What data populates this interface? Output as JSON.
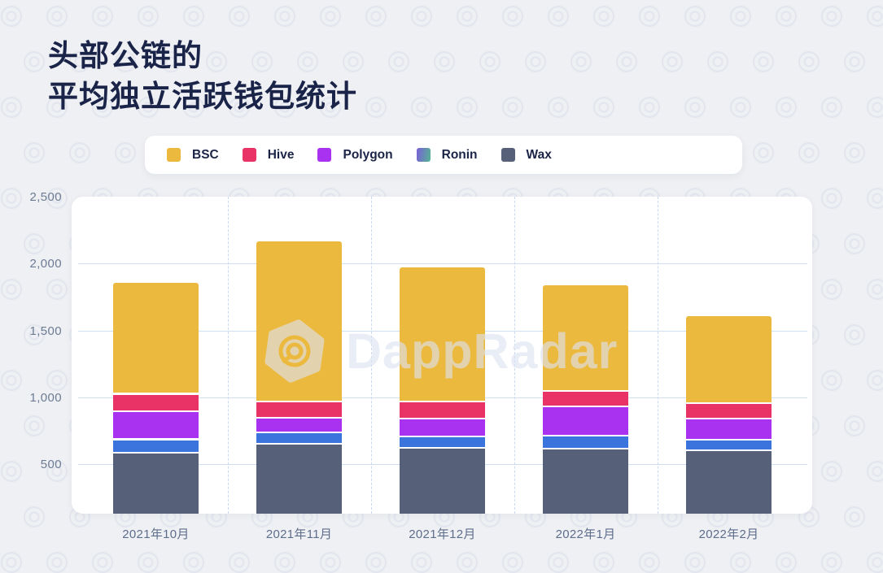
{
  "title": {
    "line1": "头部公链的",
    "line2": "平均独立活跃钱包统计"
  },
  "legend": {
    "items": [
      {
        "label": "BSC",
        "color": "#ecb93f"
      },
      {
        "label": "Hive",
        "color": "#e93366"
      },
      {
        "label": "Polygon",
        "color": "#a832ef"
      },
      {
        "label": "Ronin",
        "color": "#3b74dc",
        "legend_gradient": [
          "#7a5fd8",
          "#55b394"
        ]
      },
      {
        "label": "Wax",
        "color": "#566078"
      }
    ]
  },
  "watermark": {
    "text": "DappRadar",
    "logo": "dappradar-hexagon-logo"
  },
  "chart_data": {
    "type": "bar",
    "stacked": true,
    "title": "头部公链的平均独立活跃钱包统计",
    "categories": [
      "2021年10月",
      "2021年11月",
      "2021年12月",
      "2022年1月",
      "2022年2月"
    ],
    "stack_order": "bottom-to-top",
    "series": [
      {
        "name": "Wax",
        "color": "#566078",
        "values": [
          580,
          645,
          615,
          610,
          600
        ]
      },
      {
        "name": "Ronin",
        "color": "#3b74dc",
        "values": [
          100,
          85,
          85,
          95,
          75
        ]
      },
      {
        "name": "Polygon",
        "color": "#a832ef",
        "values": [
          210,
          110,
          135,
          220,
          160
        ]
      },
      {
        "name": "Hive",
        "color": "#e93366",
        "values": [
          130,
          125,
          125,
          115,
          115
        ]
      },
      {
        "name": "BSC",
        "color": "#ecb93f",
        "values": [
          835,
          1200,
          1010,
          800,
          655
        ]
      }
    ],
    "totals": [
      1855,
      2165,
      1970,
      1840,
      1605
    ],
    "yticks": [
      {
        "label": "500",
        "value": 500
      },
      {
        "label": "1,000",
        "value": 1000
      },
      {
        "label": "1,500",
        "value": 1500
      },
      {
        "label": "2,000",
        "value": 2000
      },
      {
        "label": "2,500",
        "value": 2500
      }
    ],
    "ylim": [
      0,
      2500
    ],
    "visible_ymin": 130,
    "legend_position": "top",
    "grid": "horizontal solid lines at 500 steps, dashed vertical month separators"
  }
}
